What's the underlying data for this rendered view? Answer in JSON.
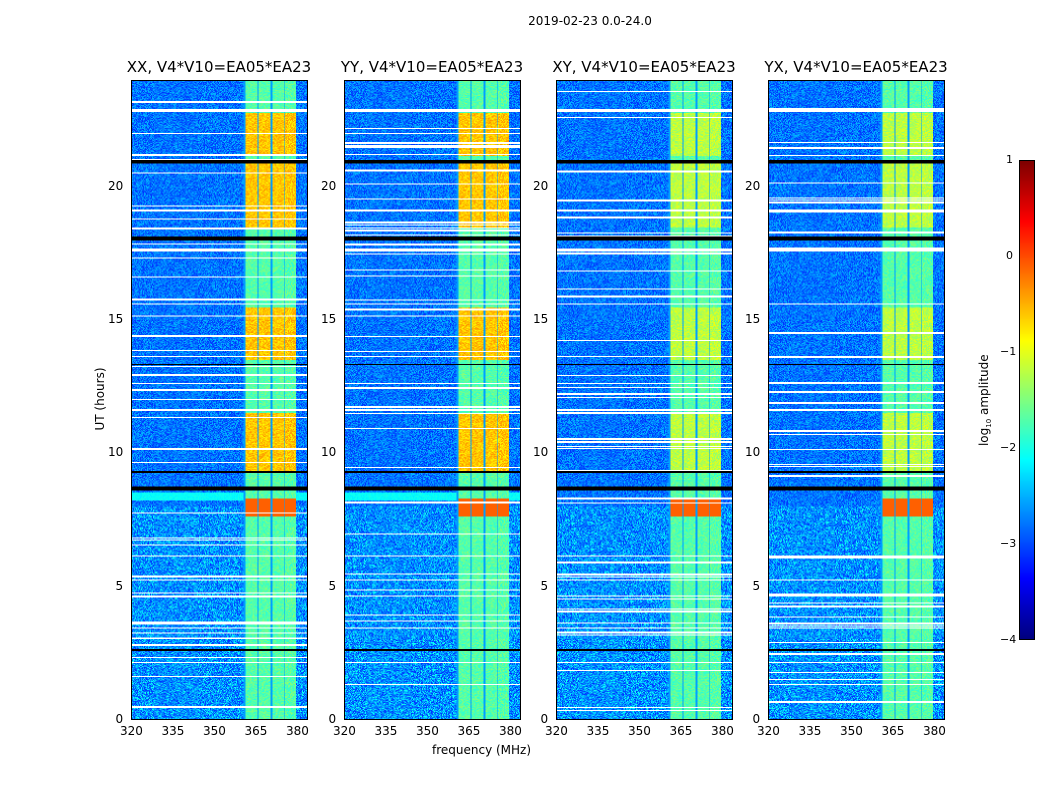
{
  "figure": {
    "suptitle": "2019-02-23 0.0-24.0"
  },
  "chart_data": {
    "type": "heatmap",
    "title": "2019-02-23 0.0-24.0",
    "xlabel": "frequency (MHz)",
    "ylabel": "UT (hours)",
    "xlim": [
      320,
      384
    ],
    "ylim": [
      0,
      24
    ],
    "xticks": [
      "320",
      "335",
      "350",
      "365",
      "380"
    ],
    "yticks": [
      "0",
      "5",
      "10",
      "15",
      "20"
    ],
    "panels": [
      {
        "title": "XX, V4*V10=EA05*EA23"
      },
      {
        "title": "YY, V4*V10=EA05*EA23"
      },
      {
        "title": "XY, V4*V10=EA05*EA23"
      },
      {
        "title": "YX, V4*V10=EA05*EA23"
      }
    ],
    "colorbar": {
      "label_main": "log",
      "label_sub": "10",
      "label_rest": " amplitude",
      "clim": [
        -4,
        1
      ],
      "ticks": [
        "1",
        "0",
        "−1",
        "−2",
        "−3",
        "−4"
      ],
      "colormap": "jet"
    },
    "background_level": -2.8,
    "rfi_band_mhz": [
      361,
      380
    ],
    "rfi_bright_hours": [
      [
        9.3,
        11.5
      ],
      [
        13.5,
        15.5
      ],
      [
        18.5,
        21.0
      ],
      [
        21.2,
        22.8
      ],
      [
        7.6,
        8.2
      ]
    ],
    "flagged_black_hours": [
      [
        20.9,
        21.05
      ],
      [
        18.0,
        18.15
      ],
      [
        8.6,
        8.75
      ],
      [
        9.25,
        9.32
      ],
      [
        2.55,
        2.62
      ],
      [
        13.3,
        13.35
      ]
    ],
    "flagged_white_hours": [
      [
        22.85,
        22.95
      ],
      [
        15.6,
        15.65
      ],
      [
        13.6,
        13.65
      ],
      [
        12.6,
        12.65
      ],
      [
        11.6,
        11.65
      ],
      [
        5.2,
        5.25
      ],
      [
        2.1,
        2.15
      ],
      [
        17.6,
        17.7
      ],
      [
        19.1,
        19.15
      ],
      [
        6.1,
        6.15
      ],
      [
        4.6,
        4.65
      ],
      [
        3.4,
        3.45
      ]
    ]
  }
}
